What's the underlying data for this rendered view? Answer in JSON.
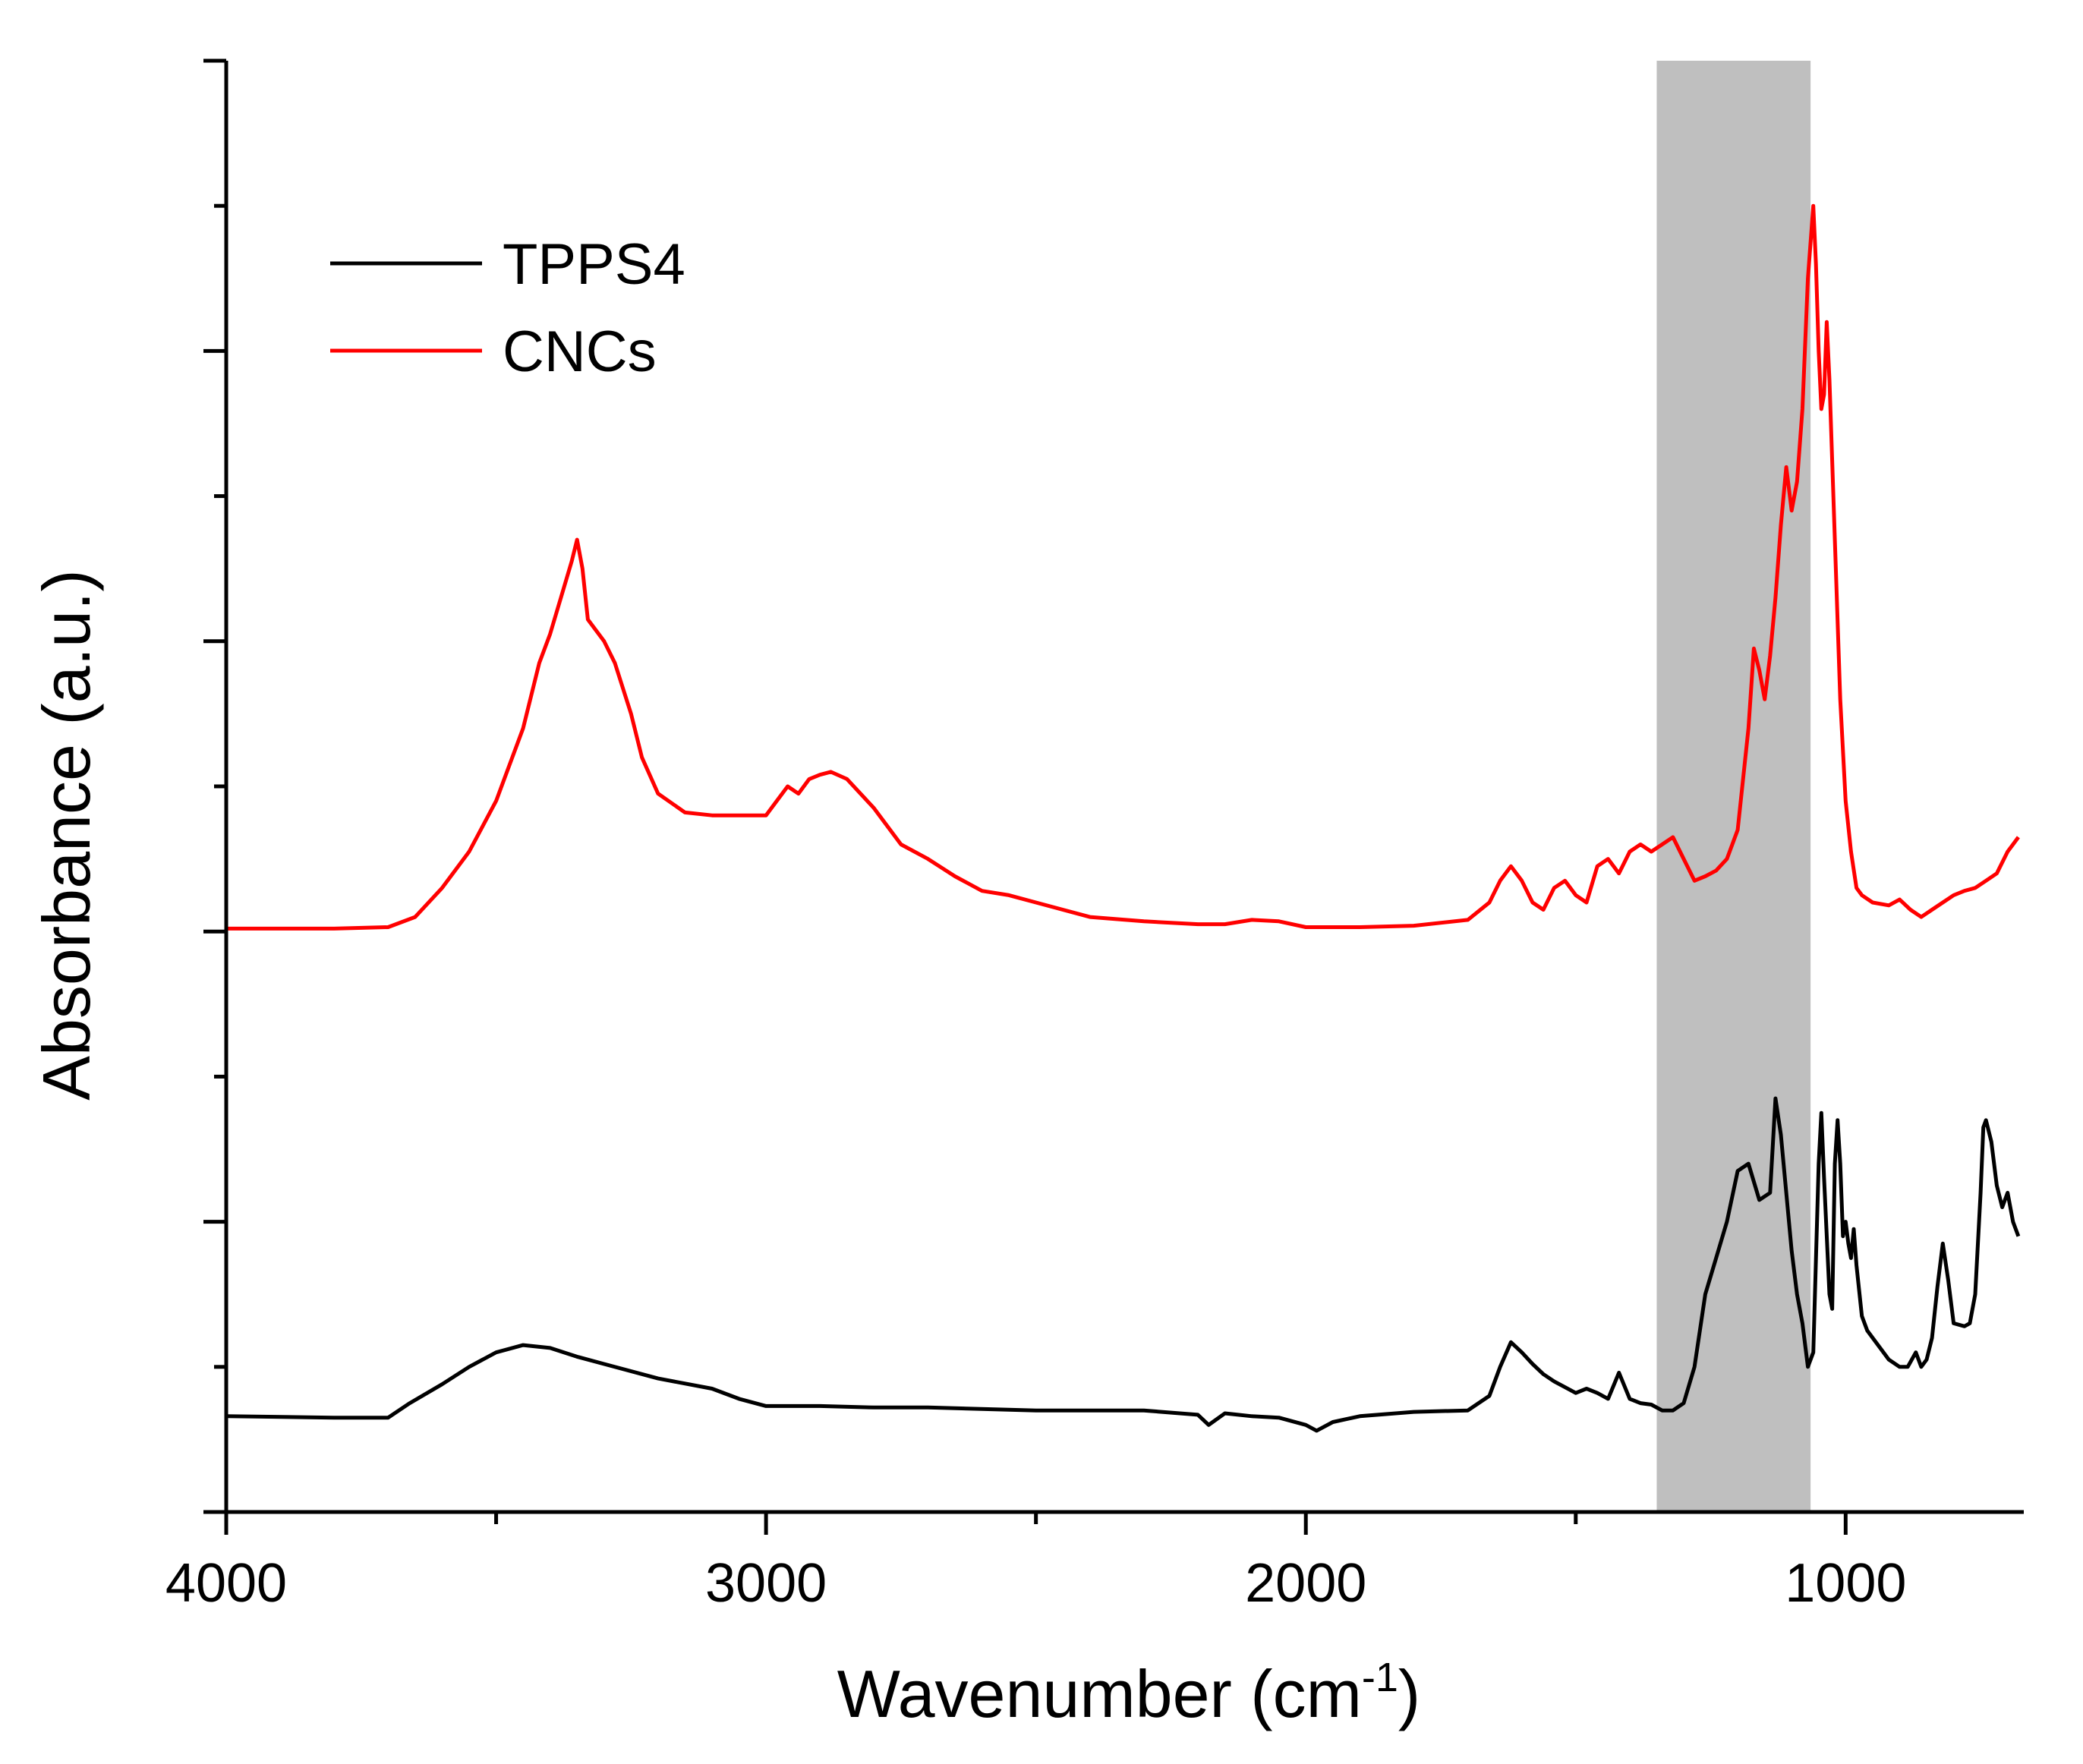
{
  "chart_data": {
    "type": "line",
    "title": "",
    "xlabel": "Wavenumber (cm-1)",
    "xlabel_parts": {
      "main": "Wavenumber (cm",
      "sup": "-1",
      "close": ")"
    },
    "ylabel": "Absorbance (a.u.)",
    "xlim": [
      4000,
      670
    ],
    "ylim": [
      0,
      10
    ],
    "x_reversed": true,
    "x_ticks": [
      4000,
      3000,
      2000,
      1000
    ],
    "x_tick_labels": [
      "4000",
      "3000",
      "2000",
      "1000"
    ],
    "x_minor_ticks": [
      3500,
      2500,
      1500
    ],
    "y_ticks": [
      0,
      1,
      2,
      3,
      4,
      5,
      6,
      7,
      8,
      9,
      10
    ],
    "y_tick_labels": [],
    "grid": false,
    "legend_position": "top-left",
    "highlight_band": {
      "x_from": 1350,
      "x_to": 1065,
      "color": "#bfbfbf"
    },
    "series": [
      {
        "name": "TPPS4",
        "color": "#000000",
        "points": [
          [
            4000,
            0.66
          ],
          [
            3800,
            0.65
          ],
          [
            3700,
            0.65
          ],
          [
            3660,
            0.75
          ],
          [
            3600,
            0.88
          ],
          [
            3550,
            1.0
          ],
          [
            3500,
            1.1
          ],
          [
            3450,
            1.15
          ],
          [
            3400,
            1.13
          ],
          [
            3350,
            1.07
          ],
          [
            3300,
            1.02
          ],
          [
            3200,
            0.92
          ],
          [
            3100,
            0.85
          ],
          [
            3050,
            0.78
          ],
          [
            3000,
            0.73
          ],
          [
            2950,
            0.73
          ],
          [
            2900,
            0.73
          ],
          [
            2800,
            0.72
          ],
          [
            2700,
            0.72
          ],
          [
            2500,
            0.7
          ],
          [
            2300,
            0.7
          ],
          [
            2200,
            0.67
          ],
          [
            2180,
            0.6
          ],
          [
            2150,
            0.68
          ],
          [
            2100,
            0.66
          ],
          [
            2050,
            0.65
          ],
          [
            2000,
            0.6
          ],
          [
            1980,
            0.56
          ],
          [
            1950,
            0.62
          ],
          [
            1900,
            0.66
          ],
          [
            1800,
            0.69
          ],
          [
            1700,
            0.7
          ],
          [
            1660,
            0.8
          ],
          [
            1640,
            1.0
          ],
          [
            1620,
            1.17
          ],
          [
            1600,
            1.1
          ],
          [
            1580,
            1.02
          ],
          [
            1560,
            0.95
          ],
          [
            1540,
            0.9
          ],
          [
            1520,
            0.86
          ],
          [
            1500,
            0.82
          ],
          [
            1480,
            0.85
          ],
          [
            1460,
            0.82
          ],
          [
            1440,
            0.78
          ],
          [
            1420,
            0.96
          ],
          [
            1400,
            0.78
          ],
          [
            1380,
            0.75
          ],
          [
            1360,
            0.74
          ],
          [
            1340,
            0.7
          ],
          [
            1320,
            0.7
          ],
          [
            1300,
            0.75
          ],
          [
            1280,
            1.0
          ],
          [
            1260,
            1.5
          ],
          [
            1240,
            1.75
          ],
          [
            1220,
            2.0
          ],
          [
            1200,
            2.35
          ],
          [
            1180,
            2.4
          ],
          [
            1160,
            2.15
          ],
          [
            1140,
            2.2
          ],
          [
            1130,
            2.85
          ],
          [
            1120,
            2.6
          ],
          [
            1100,
            1.8
          ],
          [
            1090,
            1.5
          ],
          [
            1080,
            1.3
          ],
          [
            1070,
            1.0
          ],
          [
            1060,
            1.1
          ],
          [
            1050,
            2.4
          ],
          [
            1045,
            2.75
          ],
          [
            1040,
            2.3
          ],
          [
            1030,
            1.5
          ],
          [
            1025,
            1.4
          ],
          [
            1020,
            2.4
          ],
          [
            1015,
            2.7
          ],
          [
            1010,
            2.4
          ],
          [
            1005,
            1.9
          ],
          [
            1000,
            2.0
          ],
          [
            995,
            1.85
          ],
          [
            990,
            1.75
          ],
          [
            985,
            1.95
          ],
          [
            980,
            1.7
          ],
          [
            970,
            1.35
          ],
          [
            960,
            1.25
          ],
          [
            940,
            1.15
          ],
          [
            920,
            1.05
          ],
          [
            900,
            1.0
          ],
          [
            885,
            1.0
          ],
          [
            870,
            1.1
          ],
          [
            860,
            1.0
          ],
          [
            850,
            1.05
          ],
          [
            840,
            1.2
          ],
          [
            830,
            1.55
          ],
          [
            820,
            1.85
          ],
          [
            810,
            1.6
          ],
          [
            800,
            1.3
          ],
          [
            780,
            1.28
          ],
          [
            770,
            1.3
          ],
          [
            760,
            1.5
          ],
          [
            750,
            2.2
          ],
          [
            745,
            2.65
          ],
          [
            740,
            2.7
          ],
          [
            730,
            2.55
          ],
          [
            720,
            2.25
          ],
          [
            710,
            2.1
          ],
          [
            700,
            2.2
          ],
          [
            690,
            2.0
          ],
          [
            680,
            1.9
          ]
        ]
      },
      {
        "name": "CNCs",
        "color": "#ff0000",
        "points": [
          [
            4000,
            4.02
          ],
          [
            3800,
            4.02
          ],
          [
            3700,
            4.03
          ],
          [
            3650,
            4.1
          ],
          [
            3600,
            4.3
          ],
          [
            3550,
            4.55
          ],
          [
            3500,
            4.9
          ],
          [
            3450,
            5.4
          ],
          [
            3420,
            5.85
          ],
          [
            3400,
            6.05
          ],
          [
            3380,
            6.3
          ],
          [
            3360,
            6.55
          ],
          [
            3350,
            6.7
          ],
          [
            3340,
            6.5
          ],
          [
            3330,
            6.15
          ],
          [
            3300,
            6.0
          ],
          [
            3280,
            5.85
          ],
          [
            3250,
            5.5
          ],
          [
            3230,
            5.2
          ],
          [
            3200,
            4.95
          ],
          [
            3150,
            4.82
          ],
          [
            3100,
            4.8
          ],
          [
            3000,
            4.8
          ],
          [
            2980,
            4.9
          ],
          [
            2960,
            5.0
          ],
          [
            2940,
            4.95
          ],
          [
            2920,
            5.05
          ],
          [
            2900,
            5.08
          ],
          [
            2880,
            5.1
          ],
          [
            2850,
            5.05
          ],
          [
            2800,
            4.85
          ],
          [
            2750,
            4.6
          ],
          [
            2700,
            4.5
          ],
          [
            2650,
            4.38
          ],
          [
            2600,
            4.28
          ],
          [
            2550,
            4.25
          ],
          [
            2500,
            4.2
          ],
          [
            2400,
            4.1
          ],
          [
            2300,
            4.07
          ],
          [
            2200,
            4.05
          ],
          [
            2150,
            4.05
          ],
          [
            2100,
            4.08
          ],
          [
            2050,
            4.07
          ],
          [
            2000,
            4.03
          ],
          [
            1900,
            4.03
          ],
          [
            1800,
            4.04
          ],
          [
            1700,
            4.08
          ],
          [
            1660,
            4.2
          ],
          [
            1640,
            4.35
          ],
          [
            1620,
            4.45
          ],
          [
            1600,
            4.35
          ],
          [
            1580,
            4.2
          ],
          [
            1560,
            4.15
          ],
          [
            1540,
            4.3
          ],
          [
            1520,
            4.35
          ],
          [
            1500,
            4.25
          ],
          [
            1480,
            4.2
          ],
          [
            1460,
            4.45
          ],
          [
            1440,
            4.5
          ],
          [
            1420,
            4.4
          ],
          [
            1400,
            4.55
          ],
          [
            1380,
            4.6
          ],
          [
            1360,
            4.55
          ],
          [
            1340,
            4.6
          ],
          [
            1320,
            4.65
          ],
          [
            1300,
            4.5
          ],
          [
            1280,
            4.35
          ],
          [
            1260,
            4.38
          ],
          [
            1240,
            4.42
          ],
          [
            1220,
            4.5
          ],
          [
            1200,
            4.7
          ],
          [
            1180,
            5.4
          ],
          [
            1170,
            5.95
          ],
          [
            1160,
            5.8
          ],
          [
            1150,
            5.6
          ],
          [
            1140,
            5.9
          ],
          [
            1130,
            6.3
          ],
          [
            1120,
            6.8
          ],
          [
            1110,
            7.2
          ],
          [
            1100,
            6.9
          ],
          [
            1090,
            7.1
          ],
          [
            1080,
            7.6
          ],
          [
            1070,
            8.5
          ],
          [
            1060,
            9.0
          ],
          [
            1055,
            8.6
          ],
          [
            1050,
            8.0
          ],
          [
            1045,
            7.6
          ],
          [
            1040,
            7.7
          ],
          [
            1035,
            8.2
          ],
          [
            1030,
            7.8
          ],
          [
            1020,
            6.7
          ],
          [
            1010,
            5.6
          ],
          [
            1000,
            4.9
          ],
          [
            990,
            4.55
          ],
          [
            980,
            4.3
          ],
          [
            970,
            4.25
          ],
          [
            950,
            4.2
          ],
          [
            920,
            4.18
          ],
          [
            900,
            4.22
          ],
          [
            880,
            4.15
          ],
          [
            860,
            4.1
          ],
          [
            840,
            4.15
          ],
          [
            820,
            4.2
          ],
          [
            800,
            4.25
          ],
          [
            780,
            4.28
          ],
          [
            760,
            4.3
          ],
          [
            740,
            4.35
          ],
          [
            720,
            4.4
          ],
          [
            700,
            4.55
          ],
          [
            690,
            4.6
          ],
          [
            680,
            4.65
          ]
        ]
      }
    ]
  }
}
